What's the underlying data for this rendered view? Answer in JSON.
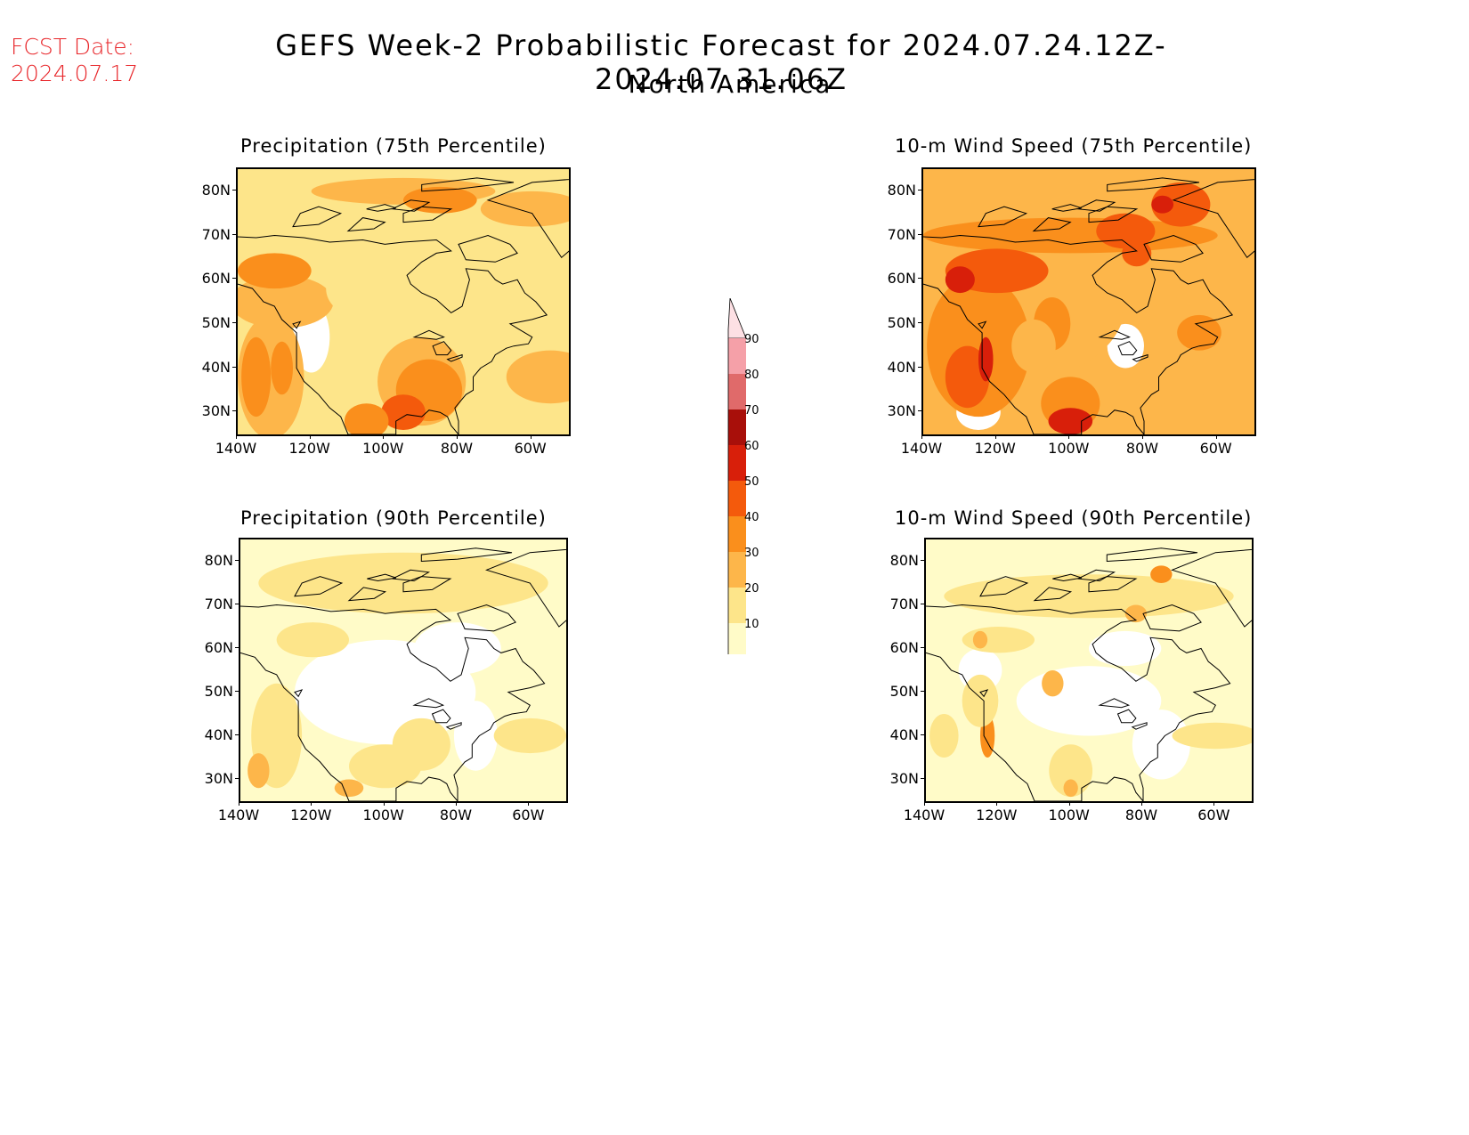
{
  "header": {
    "fcst_line1": "FCST Date:",
    "fcst_line2": "2024.07.17",
    "title": "GEFS Week-2 Probabilistic Forecast for 2024.07.24.12Z-2024.07.31.06Z",
    "subtitle": "North America"
  },
  "colors": {
    "c10": "#fffbc8",
    "c20": "#fde58a",
    "c30": "#fdb64a",
    "c40": "#fa8f1c",
    "c50": "#f45a0c",
    "c60": "#d81f0a",
    "c70": "#a80f0a",
    "c80": "#e06a6a",
    "c90": "#f5a0a8",
    "c95": "#fde0e4",
    "title_red": "#e8262a"
  },
  "colorbar": {
    "levels": [
      "10",
      "20",
      "30",
      "40",
      "50",
      "60",
      "70",
      "80",
      "90"
    ]
  },
  "axes": {
    "lat_labels": [
      "80N",
      "70N",
      "60N",
      "50N",
      "40N",
      "30N"
    ],
    "lon_labels": [
      "140W",
      "120W",
      "100W",
      "80W",
      "60W"
    ]
  },
  "panels": [
    {
      "id": "precip75",
      "title": "Precipitation (75th Percentile)",
      "intensity": "high"
    },
    {
      "id": "wind75",
      "title": "10-m Wind Speed (75th Percentile)",
      "intensity": "veryhigh"
    },
    {
      "id": "precip90",
      "title": "Precipitation (90th Percentile)",
      "intensity": "low"
    },
    {
      "id": "wind90",
      "title": "10-m Wind Speed (90th Percentile)",
      "intensity": "lowmed"
    }
  ]
}
